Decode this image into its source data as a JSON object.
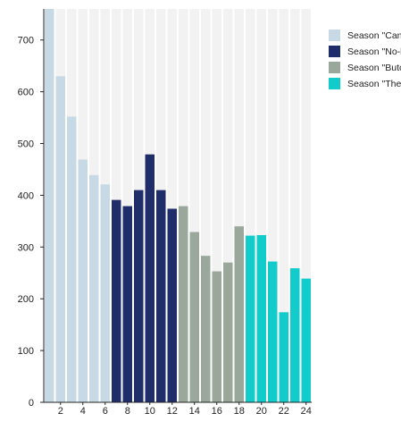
{
  "chart_data": {
    "type": "bar",
    "categories": [
      "1",
      "2",
      "3",
      "4",
      "5",
      "6",
      "7",
      "8",
      "9",
      "10",
      "11",
      "12",
      "13",
      "14",
      "15",
      "16",
      "17",
      "18",
      "19",
      "20",
      "21",
      "22",
      "23",
      "24"
    ],
    "x_tick_labels": [
      "2",
      "4",
      "6",
      "8",
      "10",
      "12",
      "14",
      "16",
      "18",
      "20",
      "22",
      "24"
    ],
    "y_tick_labels": [
      "0",
      "100",
      "200",
      "300",
      "400",
      "500",
      "600",
      "700"
    ],
    "ylim": [
      0,
      760
    ],
    "values": [
      760,
      630,
      552,
      469,
      439,
      421,
      391,
      379,
      410,
      479,
      410,
      374,
      379,
      329,
      283,
      253,
      270,
      340,
      322,
      323,
      272,
      174,
      259,
      239
    ],
    "series": [
      {
        "name": "Season \"Can",
        "color": "#c7d9e4",
        "range": [
          1,
          6
        ]
      },
      {
        "name": "Season \"No-l",
        "color": "#1f2d6b",
        "range": [
          7,
          12
        ]
      },
      {
        "name": "Season \"Butc",
        "color": "#9aa89c",
        "range": [
          13,
          18
        ]
      },
      {
        "name": "Season \"The",
        "color": "#12cccc",
        "range": [
          19,
          24
        ]
      }
    ],
    "background_bar_color": "#f2f2f2",
    "grid": false,
    "legend_position": "right"
  }
}
